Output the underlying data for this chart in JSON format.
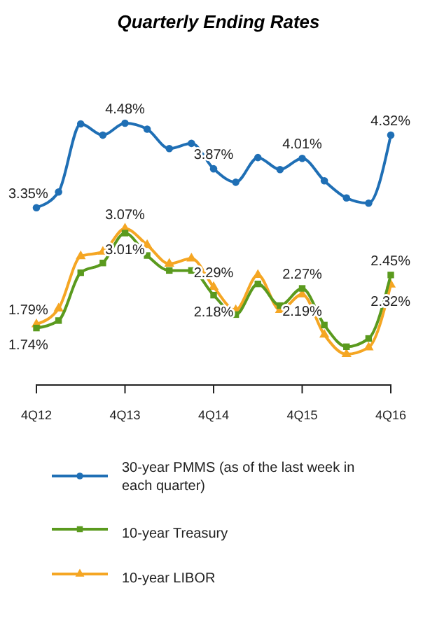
{
  "chart_data": {
    "type": "line",
    "title": "Quarterly Ending Rates",
    "categories": [
      "4Q12",
      null,
      null,
      null,
      "4Q13",
      null,
      null,
      null,
      "4Q14",
      null,
      null,
      null,
      "4Q15",
      null,
      null,
      null,
      "4Q16"
    ],
    "tick_labels": "x",
    "grid": false,
    "legend": "bottom",
    "line_style": "solid",
    "series": [
      {
        "name": "30-year PMMS (as of the last week in each quarter)",
        "color": "#1f6fb5",
        "marker": "circle",
        "values": [
          3.35,
          3.56,
          4.47,
          4.32,
          4.48,
          4.4,
          4.14,
          4.21,
          3.87,
          3.69,
          4.02,
          3.86,
          4.01,
          3.71,
          3.48,
          3.41,
          4.32
        ],
        "value_labels": [
          "3.35%",
          null,
          null,
          null,
          "4.48%",
          null,
          null,
          null,
          "3.87%",
          null,
          null,
          null,
          "4.01%",
          null,
          null,
          null,
          "4.32%"
        ]
      },
      {
        "name": "10-year Treasury",
        "color": "#5a9a1e",
        "marker": "square",
        "values": [
          1.74,
          1.84,
          2.48,
          2.61,
          3.01,
          2.71,
          2.51,
          2.51,
          2.18,
          1.92,
          2.33,
          2.04,
          2.27,
          1.78,
          1.49,
          1.6,
          2.45
        ],
        "value_labels": [
          "1.74%",
          null,
          null,
          null,
          "3.01%",
          null,
          null,
          null,
          "2.18%",
          null,
          null,
          null,
          "2.27%",
          null,
          null,
          null,
          "2.45%"
        ]
      },
      {
        "name": "10-year LIBOR",
        "color": "#f5a623",
        "marker": "triangle",
        "values": [
          1.79,
          2.0,
          2.7,
          2.76,
          3.07,
          2.85,
          2.6,
          2.67,
          2.29,
          1.98,
          2.45,
          1.98,
          2.19,
          1.65,
          1.39,
          1.48,
          2.32
        ],
        "value_labels": [
          "1.79%",
          null,
          null,
          null,
          "3.07%",
          null,
          null,
          null,
          "2.29%",
          null,
          null,
          null,
          "2.19%",
          null,
          null,
          null,
          "2.32%"
        ]
      }
    ]
  }
}
